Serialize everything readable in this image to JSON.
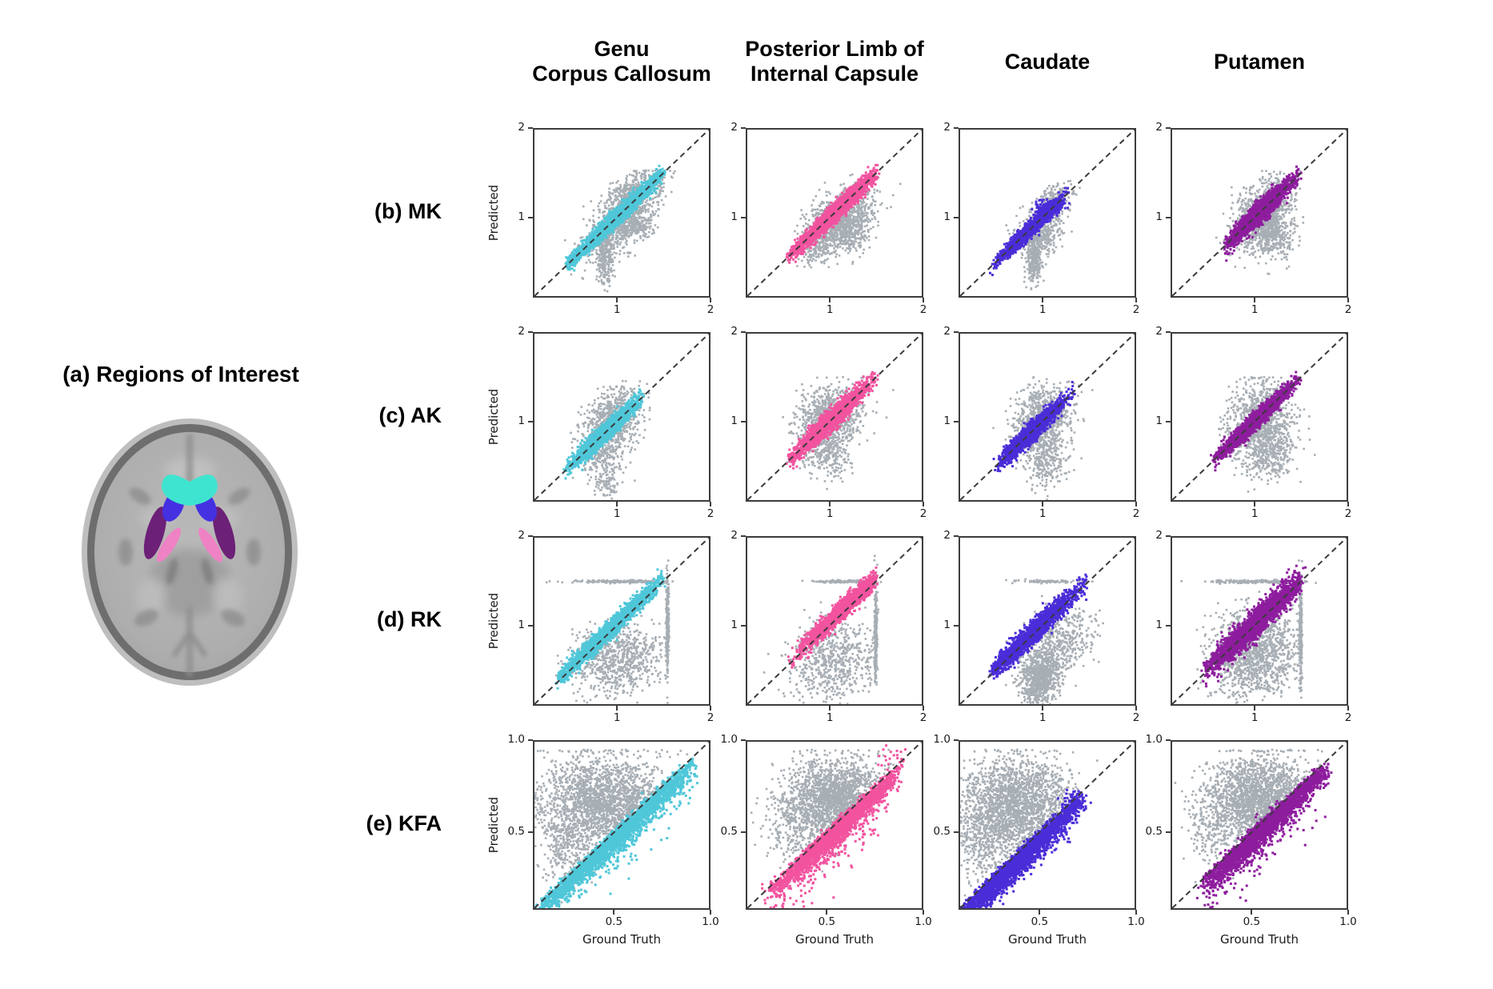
{
  "figure": {
    "panel_a": {
      "label": "(a) Regions of Interest"
    },
    "column_headers": [
      {
        "id": "genu",
        "lines": [
          "Genu",
          "Corpus Callosum"
        ]
      },
      {
        "id": "plic",
        "lines": [
          "Posterior Limb of",
          "Internal Capsule"
        ]
      },
      {
        "id": "caudate",
        "lines": [
          "Caudate"
        ]
      },
      {
        "id": "putamen",
        "lines": [
          "Putamen"
        ]
      }
    ],
    "row_labels": [
      {
        "id": "MK",
        "label": "(b) MK"
      },
      {
        "id": "AK",
        "label": "(c) AK"
      },
      {
        "id": "RK",
        "label": "(d) RK"
      },
      {
        "id": "KFA",
        "label": "(e) KFA"
      }
    ]
  },
  "colors": {
    "background": "#ffffff",
    "gray_points": "#a7aeb4",
    "identity_line": "#3a3a3a",
    "spine": "#3d3d3d",
    "regions": {
      "genu": "#4fc7d9",
      "plic": "#f2539f",
      "caudate": "#4b2dd8",
      "putamen": "#8e1d9e"
    },
    "roi_map": {
      "genu": "#3fe4d0",
      "caudate": "#4531e2",
      "putamen": "#6d2077",
      "plic": "#ee82c4"
    }
  },
  "chart_data": {
    "type": "scatter",
    "xlabel": "Ground Truth",
    "ylabel": "Predicted",
    "rows": [
      "MK",
      "AK",
      "RK",
      "KFA"
    ],
    "columns": [
      "Genu Corpus Callosum",
      "Posterior Limb of Internal Capsule",
      "Caudate",
      "Putamen"
    ],
    "identity_line": {
      "style": "dashed",
      "from": "bottom-left",
      "to": "top-right"
    },
    "axes": {
      "kurtosis": {
        "lim": [
          0.1,
          2
        ],
        "ticks": [
          1,
          2
        ],
        "tick_labels": [
          "1",
          "2"
        ]
      },
      "kfa": {
        "lim": [
          0.08,
          1
        ],
        "ticks": [
          0.5,
          1
        ],
        "tick_labels": [
          "0.5",
          "1.0"
        ]
      }
    },
    "plots": [
      {
        "metric": "MK",
        "region": "genu",
        "axis": "kurtosis",
        "gray": [
          {
            "kind": "gauss",
            "n": 700,
            "cx": 1.02,
            "cy": 0.92,
            "sx": 0.2,
            "sy": 0.18,
            "rho": 0.6
          },
          {
            "kind": "gauss",
            "n": 260,
            "cx": 0.88,
            "cy": 0.55,
            "sx": 0.045,
            "sy": 0.16
          },
          {
            "kind": "gauss",
            "n": 420,
            "cx": 1.18,
            "cy": 1.28,
            "sx": 0.17,
            "sy": 0.13,
            "rho": 0.55,
            "clipy": 1.53
          },
          {
            "kind": "gauss",
            "n": 120,
            "cx": 1.25,
            "cy": 0.9,
            "sx": 0.1,
            "sy": 0.08
          }
        ],
        "main": [
          {
            "kind": "diag",
            "n": 2400,
            "t0": 0.45,
            "t1": 1.5,
            "tm": 1.0,
            "ts": 0.26,
            "w": 0.045
          },
          {
            "kind": "gauss",
            "n": 160,
            "cx": 0.55,
            "cy": 0.55,
            "sx": 0.035,
            "sy": 0.035,
            "rho": 0.8
          }
        ]
      },
      {
        "metric": "MK",
        "region": "plic",
        "axis": "kurtosis",
        "gray": [
          {
            "kind": "gauss",
            "n": 800,
            "cx": 1.12,
            "cy": 1.02,
            "sx": 0.18,
            "sy": 0.16,
            "rho": 0.45,
            "clipy": 1.53
          },
          {
            "kind": "gauss",
            "n": 300,
            "cx": 1.2,
            "cy": 0.82,
            "sx": 0.13,
            "sy": 0.12,
            "rho": 0.2
          },
          {
            "kind": "gauss",
            "n": 140,
            "cx": 0.85,
            "cy": 0.62,
            "sx": 0.1,
            "sy": 0.1,
            "rho": 0.3
          }
        ],
        "main": [
          {
            "kind": "diag",
            "n": 2400,
            "t0": 0.55,
            "t1": 1.5,
            "tm": 1.08,
            "ts": 0.22,
            "w": 0.05
          },
          {
            "kind": "gauss",
            "n": 110,
            "cx": 0.63,
            "cy": 0.63,
            "sx": 0.04,
            "sy": 0.04,
            "rho": 0.8
          }
        ]
      },
      {
        "metric": "MK",
        "region": "caudate",
        "axis": "kurtosis",
        "gray": [
          {
            "kind": "gauss",
            "n": 420,
            "cx": 0.97,
            "cy": 0.8,
            "sx": 0.13,
            "sy": 0.13,
            "rho": 0.3
          },
          {
            "kind": "gauss",
            "n": 260,
            "cx": 0.9,
            "cy": 0.5,
            "sx": 0.04,
            "sy": 0.13
          },
          {
            "kind": "gauss",
            "n": 220,
            "cx": 1.12,
            "cy": 1.18,
            "sx": 0.11,
            "sy": 0.1,
            "rho": 0.5
          }
        ],
        "main": [
          {
            "kind": "diag",
            "n": 2000,
            "t0": 0.45,
            "t1": 1.28,
            "tm": 0.86,
            "ts": 0.16,
            "w": 0.04
          },
          {
            "kind": "gauss",
            "n": 260,
            "cx": 1.08,
            "cy": 1.12,
            "sx": 0.07,
            "sy": 0.035,
            "rho": 0.2
          }
        ]
      },
      {
        "metric": "MK",
        "region": "putamen",
        "axis": "kurtosis",
        "gray": [
          {
            "kind": "gauss",
            "n": 950,
            "cx": 1.08,
            "cy": 1.02,
            "sx": 0.16,
            "sy": 0.2,
            "rho": 0.35,
            "clipy": 1.53
          },
          {
            "kind": "gauss",
            "n": 280,
            "cx": 1.22,
            "cy": 0.78,
            "sx": 0.11,
            "sy": 0.13
          }
        ],
        "main": [
          {
            "kind": "diag",
            "n": 2400,
            "t0": 0.68,
            "t1": 1.5,
            "tm": 1.05,
            "ts": 0.17,
            "w": 0.055
          }
        ]
      },
      {
        "metric": "AK",
        "region": "genu",
        "axis": "kurtosis",
        "gray": [
          {
            "kind": "gauss",
            "n": 750,
            "cx": 0.95,
            "cy": 1.0,
            "sx": 0.16,
            "sy": 0.18,
            "rho": 0.3,
            "clipy": 1.5
          },
          {
            "kind": "gauss",
            "n": 240,
            "cx": 0.85,
            "cy": 0.6,
            "sx": 0.12,
            "sy": 0.13
          },
          {
            "kind": "gauss",
            "n": 70,
            "cx": 0.9,
            "cy": 0.28,
            "sx": 0.07,
            "sy": 0.07
          }
        ],
        "main": [
          {
            "kind": "diag",
            "n": 2000,
            "t0": 0.45,
            "t1": 1.3,
            "tm": 0.85,
            "ts": 0.18,
            "w": 0.05
          }
        ]
      },
      {
        "metric": "AK",
        "region": "plic",
        "axis": "kurtosis",
        "gray": [
          {
            "kind": "gauss",
            "n": 900,
            "cx": 1.0,
            "cy": 1.05,
            "sx": 0.18,
            "sy": 0.18,
            "rho": 0.25,
            "clipy": 1.5
          },
          {
            "kind": "gauss",
            "n": 240,
            "cx": 0.98,
            "cy": 0.62,
            "sx": 0.13,
            "sy": 0.12
          }
        ],
        "main": [
          {
            "kind": "diag",
            "n": 2200,
            "t0": 0.55,
            "t1": 1.5,
            "tm": 1.0,
            "ts": 0.2,
            "w": 0.055
          }
        ]
      },
      {
        "metric": "AK",
        "region": "caudate",
        "axis": "kurtosis",
        "gray": [
          {
            "kind": "gauss",
            "n": 850,
            "cx": 1.0,
            "cy": 1.02,
            "sx": 0.15,
            "sy": 0.18,
            "rho": 0.2,
            "clipy": 1.5
          },
          {
            "kind": "gauss",
            "n": 280,
            "cx": 1.02,
            "cy": 0.55,
            "sx": 0.12,
            "sy": 0.14
          }
        ],
        "main": [
          {
            "kind": "diag",
            "n": 2000,
            "t0": 0.5,
            "t1": 1.32,
            "tm": 0.88,
            "ts": 0.17,
            "w": 0.05
          }
        ]
      },
      {
        "metric": "AK",
        "region": "putamen",
        "axis": "kurtosis",
        "gray": [
          {
            "kind": "gauss",
            "n": 1000,
            "cx": 1.05,
            "cy": 1.0,
            "sx": 0.17,
            "sy": 0.22,
            "rho": 0.2,
            "clipy": 1.5
          },
          {
            "kind": "gauss",
            "n": 280,
            "cx": 1.18,
            "cy": 0.6,
            "sx": 0.14,
            "sy": 0.14
          }
        ],
        "main": [
          {
            "kind": "diag",
            "n": 2300,
            "t0": 0.55,
            "t1": 1.5,
            "tm": 1.0,
            "ts": 0.2,
            "w": 0.045
          }
        ]
      },
      {
        "metric": "RK",
        "region": "genu",
        "axis": "kurtosis",
        "gray": [
          {
            "kind": "gauss",
            "n": 800,
            "cx": 1.0,
            "cy": 0.62,
            "sx": 0.24,
            "sy": 0.2,
            "rho": 0.15,
            "clipx": 1.55
          },
          {
            "kind": "gauss",
            "n": 280,
            "cx": 1.55,
            "cy": 1.0,
            "sx": 0.008,
            "sy": 0.28
          },
          {
            "kind": "gauss",
            "n": 200,
            "cx": 1.05,
            "cy": 1.5,
            "sx": 0.27,
            "sy": 0.008
          }
        ],
        "main": [
          {
            "kind": "diag",
            "n": 2300,
            "t0": 0.35,
            "t1": 1.5,
            "tm": 0.9,
            "ts": 0.27,
            "w": 0.05,
            "bias": 0.03
          }
        ]
      },
      {
        "metric": "RK",
        "region": "plic",
        "axis": "kurtosis",
        "gray": [
          {
            "kind": "gauss",
            "n": 650,
            "cx": 1.05,
            "cy": 0.6,
            "sx": 0.24,
            "sy": 0.23,
            "rho": 0.1,
            "clipx": 1.5
          },
          {
            "kind": "gauss",
            "n": 280,
            "cx": 1.5,
            "cy": 0.9,
            "sx": 0.008,
            "sy": 0.26
          },
          {
            "kind": "gauss",
            "n": 120,
            "cx": 1.15,
            "cy": 1.5,
            "sx": 0.17,
            "sy": 0.008
          }
        ],
        "main": [
          {
            "kind": "diag",
            "n": 1700,
            "t0": 0.55,
            "t1": 1.5,
            "tm": 1.15,
            "ts": 0.22,
            "w": 0.05,
            "bias": 0.04
          }
        ]
      },
      {
        "metric": "RK",
        "region": "caudate",
        "axis": "kurtosis",
        "gray": [
          {
            "kind": "gauss",
            "n": 850,
            "cx": 0.97,
            "cy": 0.42,
            "sx": 0.11,
            "sy": 0.16,
            "rho": 0.15
          },
          {
            "kind": "gauss",
            "n": 380,
            "cx": 1.2,
            "cy": 0.82,
            "sx": 0.18,
            "sy": 0.18,
            "rho": 0.2
          },
          {
            "kind": "gauss",
            "n": 90,
            "cx": 1.05,
            "cy": 1.5,
            "sx": 0.18,
            "sy": 0.008
          }
        ],
        "main": [
          {
            "kind": "diag",
            "n": 2100,
            "t0": 0.45,
            "t1": 1.5,
            "tm": 0.85,
            "ts": 0.24,
            "w": 0.06,
            "bias": 0.02
          }
        ]
      },
      {
        "metric": "RK",
        "region": "putamen",
        "axis": "kurtosis",
        "gray": [
          {
            "kind": "gauss",
            "n": 1300,
            "cx": 1.0,
            "cy": 0.68,
            "sx": 0.24,
            "sy": 0.26,
            "rho": 0.15,
            "clipx": 1.5
          },
          {
            "kind": "gauss",
            "n": 300,
            "cx": 1.5,
            "cy": 0.92,
            "sx": 0.008,
            "sy": 0.28
          },
          {
            "kind": "gauss",
            "n": 220,
            "cx": 1.0,
            "cy": 1.5,
            "sx": 0.24,
            "sy": 0.008
          }
        ],
        "main": [
          {
            "kind": "diag",
            "n": 2600,
            "t0": 0.45,
            "t1": 1.5,
            "tm": 1.0,
            "ts": 0.26,
            "w": 0.075,
            "bias": 0.01
          }
        ]
      },
      {
        "metric": "KFA",
        "region": "genu",
        "axis": "kfa",
        "gray": [
          {
            "kind": "gauss",
            "n": 2300,
            "cx": 0.45,
            "cy": 0.66,
            "sx": 0.17,
            "sy": 0.13,
            "rho": -0.05,
            "clipy": 0.95,
            "dmin": -0.05
          },
          {
            "kind": "gauss",
            "n": 250,
            "cx": 0.24,
            "cy": 0.42,
            "sx": 0.07,
            "sy": 0.1
          }
        ],
        "main": [
          {
            "kind": "diag",
            "n": 2600,
            "t0": 0.09,
            "t1": 0.92,
            "tm": 0.5,
            "ts": 0.22,
            "w": 0.05,
            "side": "below"
          },
          {
            "kind": "diag",
            "n": 200,
            "t0": 0.3,
            "t1": 0.9,
            "tm": 0.6,
            "ts": 0.18,
            "w": 0.1,
            "side": "below"
          },
          {
            "kind": "gauss",
            "n": 40,
            "cx": 0.85,
            "cy": 0.78,
            "sx": 0.04,
            "sy": 0.04
          }
        ]
      },
      {
        "metric": "KFA",
        "region": "plic",
        "axis": "kfa",
        "gray": [
          {
            "kind": "gauss",
            "n": 2100,
            "cx": 0.55,
            "cy": 0.68,
            "sx": 0.14,
            "sy": 0.11,
            "clipy": 0.95,
            "dmin": -0.04
          },
          {
            "kind": "gauss",
            "n": 220,
            "cx": 0.33,
            "cy": 0.5,
            "sx": 0.08,
            "sy": 0.1
          }
        ],
        "main": [
          {
            "kind": "diag",
            "n": 2300,
            "t0": 0.2,
            "t1": 0.88,
            "tm": 0.55,
            "ts": 0.17,
            "w": 0.05,
            "side": "below"
          },
          {
            "kind": "diag",
            "n": 260,
            "t0": 0.2,
            "t1": 0.85,
            "tm": 0.5,
            "ts": 0.18,
            "w": 0.12,
            "side": "below"
          },
          {
            "kind": "gauss",
            "n": 25,
            "cx": 0.85,
            "cy": 0.9,
            "sx": 0.035,
            "sy": 0.035
          }
        ]
      },
      {
        "metric": "KFA",
        "region": "caudate",
        "axis": "kfa",
        "gray": [
          {
            "kind": "gauss",
            "n": 2300,
            "cx": 0.38,
            "cy": 0.64,
            "sx": 0.15,
            "sy": 0.13,
            "clipy": 0.95,
            "dmin": -0.03
          },
          {
            "kind": "gauss",
            "n": 260,
            "cx": 0.2,
            "cy": 0.42,
            "sx": 0.07,
            "sy": 0.12
          }
        ],
        "main": [
          {
            "kind": "diag",
            "n": 2800,
            "t0": 0.09,
            "t1": 0.72,
            "tm": 0.38,
            "ts": 0.18,
            "w": 0.055,
            "side": "below"
          },
          {
            "kind": "gauss",
            "n": 60,
            "cx": 0.68,
            "cy": 0.66,
            "sx": 0.04,
            "sy": 0.04
          }
        ]
      },
      {
        "metric": "KFA",
        "region": "putamen",
        "axis": "kfa",
        "gray": [
          {
            "kind": "gauss",
            "n": 2200,
            "cx": 0.55,
            "cy": 0.68,
            "sx": 0.15,
            "sy": 0.12,
            "clipy": 0.95,
            "dmin": -0.03
          },
          {
            "kind": "gauss",
            "n": 150,
            "cx": 0.3,
            "cy": 0.5,
            "sx": 0.07,
            "sy": 0.09
          }
        ],
        "main": [
          {
            "kind": "diag",
            "n": 2600,
            "t0": 0.25,
            "t1": 0.9,
            "tm": 0.57,
            "ts": 0.17,
            "w": 0.05,
            "side": "below"
          },
          {
            "kind": "diag",
            "n": 280,
            "t0": 0.25,
            "t1": 0.85,
            "tm": 0.5,
            "ts": 0.17,
            "w": 0.12,
            "side": "below"
          },
          {
            "kind": "gauss",
            "n": 20,
            "cx": 0.85,
            "cy": 0.8,
            "sx": 0.03,
            "sy": 0.03
          }
        ]
      }
    ]
  }
}
